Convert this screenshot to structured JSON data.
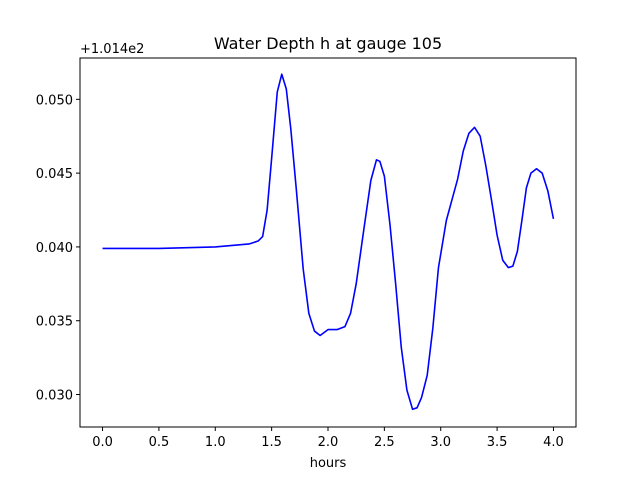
{
  "chart_data": {
    "type": "line",
    "title": "Water Depth h at gauge 105",
    "xlabel": "hours",
    "ylabel": "",
    "y_offset_label": "+1.014e2",
    "xlim": [
      -0.2,
      4.2
    ],
    "ylim": [
      0.0278,
      0.0528
    ],
    "xticks": [
      0.0,
      0.5,
      1.0,
      1.5,
      2.0,
      2.5,
      3.0,
      3.5,
      4.0
    ],
    "xtick_labels": [
      "0.0",
      "0.5",
      "1.0",
      "1.5",
      "2.0",
      "2.5",
      "3.0",
      "3.5",
      "4.0"
    ],
    "yticks": [
      0.03,
      0.035,
      0.04,
      0.045,
      0.05
    ],
    "ytick_labels": [
      "0.030",
      "0.035",
      "0.040",
      "0.045",
      "0.050"
    ],
    "grid": false,
    "series": [
      {
        "color": "#0000ff",
        "x": [
          0.0,
          0.5,
          1.0,
          1.15,
          1.3,
          1.38,
          1.42,
          1.46,
          1.5,
          1.55,
          1.59,
          1.63,
          1.67,
          1.72,
          1.78,
          1.83,
          1.88,
          1.93,
          2.0,
          2.08,
          2.15,
          2.2,
          2.25,
          2.32,
          2.38,
          2.43,
          2.46,
          2.5,
          2.55,
          2.6,
          2.65,
          2.7,
          2.75,
          2.79,
          2.83,
          2.88,
          2.93,
          2.98,
          3.05,
          3.1,
          3.15,
          3.2,
          3.25,
          3.3,
          3.35,
          3.4,
          3.45,
          3.5,
          3.55,
          3.6,
          3.64,
          3.68,
          3.72,
          3.76,
          3.8,
          3.85,
          3.9,
          3.95,
          4.0
        ],
        "y": [
          0.0399,
          0.0399,
          0.04,
          0.0401,
          0.0402,
          0.0404,
          0.0407,
          0.0425,
          0.046,
          0.0505,
          0.0517,
          0.0507,
          0.048,
          0.0438,
          0.0385,
          0.0355,
          0.0343,
          0.034,
          0.0344,
          0.0344,
          0.0346,
          0.0355,
          0.0375,
          0.0413,
          0.0445,
          0.0459,
          0.0458,
          0.0448,
          0.0415,
          0.0375,
          0.0332,
          0.0303,
          0.029,
          0.0291,
          0.0298,
          0.0313,
          0.0345,
          0.0386,
          0.0418,
          0.0432,
          0.0446,
          0.0465,
          0.0477,
          0.0481,
          0.0475,
          0.0455,
          0.0432,
          0.0408,
          0.0391,
          0.0386,
          0.0387,
          0.0397,
          0.0418,
          0.044,
          0.045,
          0.0453,
          0.045,
          0.0438,
          0.0419
        ]
      }
    ]
  }
}
